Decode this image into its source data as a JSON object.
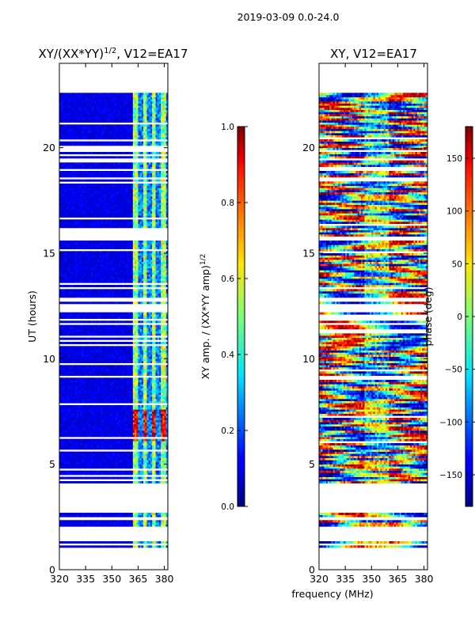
{
  "suptitle": "2019-03-09 0.0-24.0",
  "chart_data": [
    {
      "type": "heatmap",
      "panel": "left",
      "title": "XY/(XX*YY)",
      "title_superscript": "1/2",
      "title_suffix": ", V12=EA17",
      "xlabel": "",
      "ylabel": "UT (hours)",
      "xlim": [
        320,
        382
      ],
      "ylim": [
        0,
        24
      ],
      "xticks": [
        320,
        335,
        350,
        365,
        380
      ],
      "yticks": [
        0,
        5,
        10,
        15,
        20
      ],
      "colormap": "jet",
      "colorbar": {
        "label": "XY amp. / (XX*YY amp)",
        "label_superscript": "1/2",
        "range": [
          0.0,
          1.0
        ],
        "ticks": [
          "0.0",
          "0.2",
          "0.4",
          "0.6",
          "0.8",
          "1.0"
        ],
        "tick_values": [
          0.0,
          0.2,
          0.4,
          0.6,
          0.8,
          1.0
        ]
      },
      "data_rows_ut": [
        [
          1.05,
          1.15
        ],
        [
          1.25,
          1.35
        ],
        [
          2.05,
          2.35
        ],
        [
          2.5,
          2.7
        ],
        [
          4.1,
          9.1
        ],
        [
          9.2,
          11.8
        ],
        [
          11.9,
          12.2
        ],
        [
          12.6,
          12.7
        ],
        [
          12.9,
          13.3
        ],
        [
          13.4,
          15.6
        ],
        [
          15.8,
          22.6
        ]
      ],
      "features": {
        "low_background": 0.1,
        "bright_channel_band_mhz": [
          362,
          382
        ],
        "high_amplitude_ut": [
          6.0,
          7.5
        ]
      }
    },
    {
      "type": "heatmap",
      "panel": "right",
      "title": "XY, V12=EA17",
      "xlabel": "frequency (MHz)",
      "ylabel": "",
      "xlim": [
        320,
        382
      ],
      "ylim": [
        0,
        24
      ],
      "xticks": [
        320,
        335,
        350,
        365,
        380
      ],
      "yticks": [
        0,
        5,
        10,
        15,
        20
      ],
      "colormap": "jet",
      "colorbar": {
        "label": "phase (deg)",
        "range": [
          -180,
          180
        ],
        "ticks": [
          "−150",
          "−100",
          "−50",
          "0",
          "50",
          "100",
          "150"
        ],
        "tick_values": [
          -150,
          -100,
          -50,
          0,
          50,
          100,
          150
        ]
      },
      "data_rows_ut": [
        [
          1.05,
          1.15
        ],
        [
          1.25,
          1.35
        ],
        [
          2.05,
          2.35
        ],
        [
          2.5,
          2.7
        ],
        [
          4.1,
          9.1
        ],
        [
          9.2,
          11.8
        ],
        [
          11.9,
          12.2
        ],
        [
          12.6,
          12.7
        ],
        [
          12.9,
          13.3
        ],
        [
          13.4,
          15.6
        ],
        [
          15.8,
          22.6
        ]
      ],
      "features": {
        "phase_range_deg": [
          -180,
          180
        ],
        "central_band_mhz": [
          345,
          360
        ]
      }
    }
  ]
}
